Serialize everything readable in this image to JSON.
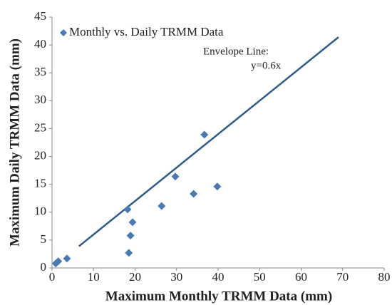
{
  "chart_data": {
    "type": "scatter",
    "xlabel": "Maximum Monthly TRMM Data (mm)",
    "ylabel": "Maximum Daily TRMM Data (mm)",
    "series": [
      {
        "name": "Monthly vs. Daily TRMM Data",
        "color": "#4a7ab5",
        "x": [
          0.9,
          1.5,
          3.6,
          18.2,
          18.5,
          18.9,
          19.4,
          26.4,
          29.7,
          34.1,
          36.7,
          39.8
        ],
        "values": [
          0.8,
          1.2,
          1.7,
          10.5,
          2.7,
          5.8,
          8.2,
          11.1,
          16.4,
          13.3,
          23.9,
          14.6
        ]
      }
    ],
    "envelope": {
      "x": [
        6.5,
        69
      ],
      "values": [
        3.9,
        41.4
      ],
      "color": "#2e5b8a"
    },
    "annotation": [
      "Envelope Line:",
      "y=0.6x"
    ],
    "xlim": [
      0,
      80
    ],
    "xticks": [
      0,
      10,
      20,
      30,
      40,
      50,
      60,
      70,
      80
    ],
    "ylim": [
      0,
      45
    ],
    "yticks": [
      0,
      5,
      10,
      15,
      20,
      25,
      30,
      35,
      40,
      45
    ],
    "legend": "upper left",
    "grid": false
  }
}
